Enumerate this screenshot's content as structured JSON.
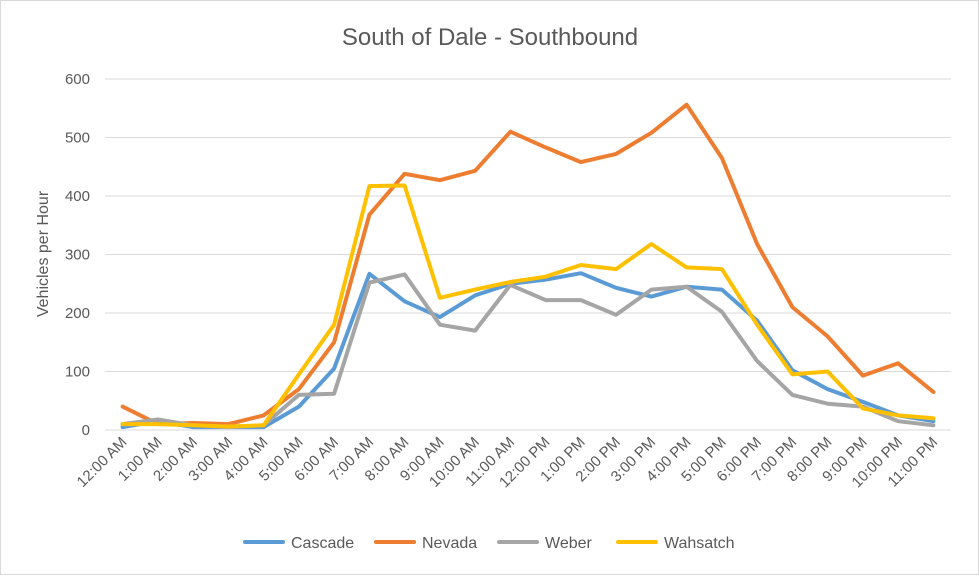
{
  "chart_data": {
    "type": "line",
    "title": "South of Dale - Southbound",
    "xlabel": "",
    "ylabel": "Vehicles per Hour",
    "ylim": [
      0,
      600
    ],
    "yticks": [
      "0",
      "100",
      "200",
      "300",
      "400",
      "500",
      "600"
    ],
    "grid": true,
    "legend_position": "bottom",
    "categories": [
      "12:00 AM",
      "1:00 AM",
      "2:00 AM",
      "3:00 AM",
      "4:00 AM",
      "5:00 AM",
      "6:00 AM",
      "7:00 AM",
      "8:00 AM",
      "9:00 AM",
      "10:00 AM",
      "11:00 AM",
      "12:00 PM",
      "1:00 PM",
      "2:00 PM",
      "3:00 PM",
      "4:00 PM",
      "5:00 PM",
      "6:00 PM",
      "7:00 PM",
      "8:00 PM",
      "9:00 PM",
      "10:00 PM",
      "11:00 PM"
    ],
    "series": [
      {
        "name": "Cascade",
        "color": "#5b9bd5",
        "values": [
          5,
          15,
          5,
          5,
          5,
          40,
          105,
          267,
          220,
          193,
          230,
          250,
          257,
          268,
          243,
          228,
          245,
          240,
          187,
          102,
          70,
          48,
          25,
          15
        ]
      },
      {
        "name": "Nevada",
        "color": "#ed7d31",
        "values": [
          40,
          10,
          12,
          10,
          25,
          70,
          150,
          368,
          438,
          427,
          443,
          510,
          483,
          458,
          472,
          508,
          556,
          465,
          318,
          210,
          160,
          93,
          114,
          65
        ]
      },
      {
        "name": "Weber",
        "color": "#a5a5a5",
        "values": [
          10,
          18,
          8,
          5,
          8,
          60,
          62,
          252,
          266,
          180,
          170,
          248,
          222,
          222,
          197,
          240,
          245,
          202,
          118,
          60,
          45,
          40,
          15,
          8
        ]
      },
      {
        "name": "Wahsatch",
        "color": "#ffc000",
        "values": [
          10,
          10,
          8,
          6,
          8,
          95,
          180,
          417,
          418,
          226,
          240,
          253,
          262,
          282,
          275,
          318,
          278,
          275,
          180,
          95,
          100,
          37,
          25,
          20
        ]
      }
    ]
  }
}
